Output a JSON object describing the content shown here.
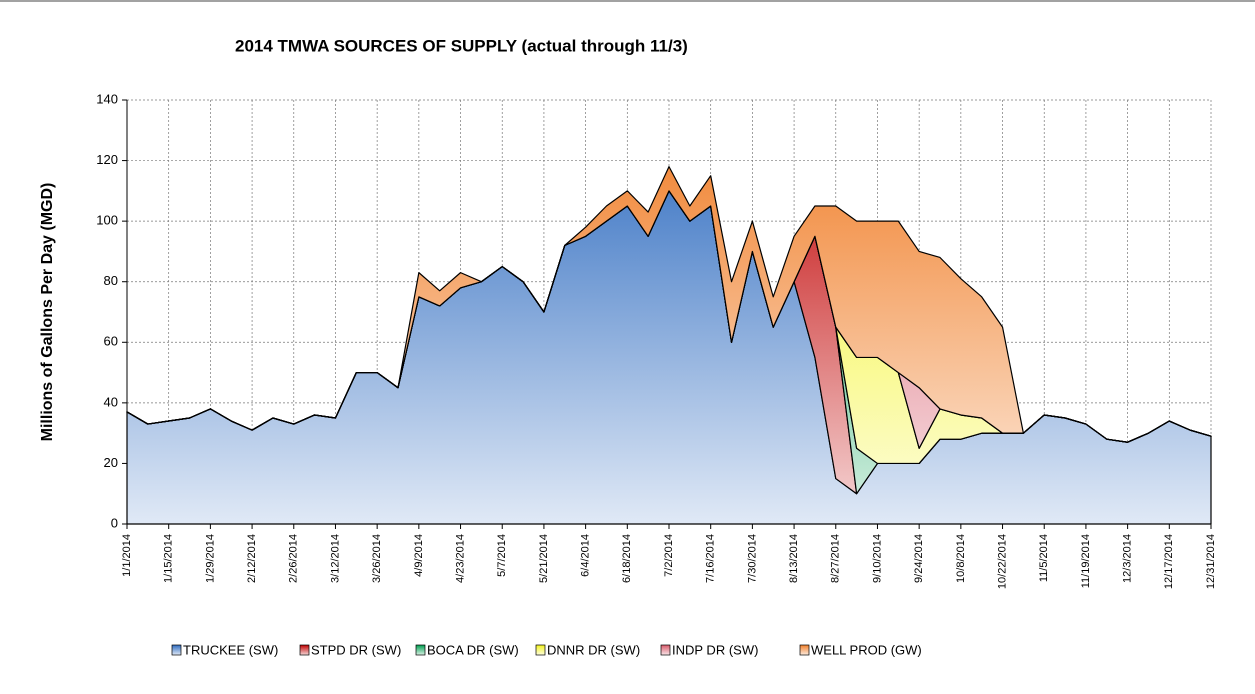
{
  "chart_data": {
    "type": "stacked_area",
    "title": "2014 TMWA SOURCES OF SUPPLY (actual through 11/3)",
    "y_label": "Millions of Gallons Per Day (MGD)",
    "x": [
      "1/1/2014",
      "1/8/2014",
      "1/15/2014",
      "1/22/2014",
      "1/29/2014",
      "2/5/2014",
      "2/12/2014",
      "2/19/2014",
      "2/26/2014",
      "3/5/2014",
      "3/12/2014",
      "3/19/2014",
      "3/26/2014",
      "4/2/2014",
      "4/9/2014",
      "4/16/2014",
      "4/23/2014",
      "4/30/2014",
      "5/7/2014",
      "5/14/2014",
      "5/21/2014",
      "5/28/2014",
      "6/4/2014",
      "6/11/2014",
      "6/18/2014",
      "6/25/2014",
      "7/2/2014",
      "7/9/2014",
      "7/16/2014",
      "7/23/2014",
      "7/30/2014",
      "8/6/2014",
      "8/13/2014",
      "8/20/2014",
      "8/27/2014",
      "9/3/2014",
      "9/10/2014",
      "9/17/2014",
      "9/24/2014",
      "10/1/2014",
      "10/8/2014",
      "10/15/2014",
      "10/22/2014",
      "10/29/2014",
      "11/5/2014",
      "11/12/2014",
      "11/19/2014",
      "11/26/2014",
      "12/3/2014",
      "12/10/2014",
      "12/17/2014",
      "12/24/2014",
      "12/31/2014"
    ],
    "xlim": [
      "1/1/2014",
      "12/31/2014"
    ],
    "xticks": [
      "1/1/2014",
      "1/15/2014",
      "1/29/2014",
      "2/12/2014",
      "2/26/2014",
      "3/12/2014",
      "3/26/2014",
      "4/9/2014",
      "4/23/2014",
      "5/7/2014",
      "5/21/2014",
      "6/4/2014",
      "6/18/2014",
      "7/2/2014",
      "7/16/2014",
      "7/30/2014",
      "8/13/2014",
      "8/27/2014",
      "9/10/2014",
      "9/24/2014",
      "10/8/2014",
      "10/22/2014",
      "11/5/2014",
      "11/19/2014",
      "12/3/2014",
      "12/17/2014",
      "12/31/2014"
    ],
    "ylim": [
      0,
      140
    ],
    "yticks": [
      0,
      20,
      40,
      60,
      80,
      100,
      120,
      140
    ],
    "grid": true,
    "series": [
      {
        "name": "TRUCKEE (SW)",
        "color": "#2f6cc0",
        "values": [
          37,
          33,
          34,
          35,
          38,
          34,
          31,
          35,
          33,
          36,
          35,
          50,
          50,
          45,
          75,
          72,
          78,
          80,
          85,
          80,
          70,
          92,
          95,
          100,
          105,
          95,
          110,
          100,
          105,
          60,
          90,
          65,
          80,
          55,
          15,
          10,
          20,
          20,
          20,
          28,
          28,
          30,
          30,
          30,
          36,
          35,
          33,
          28,
          27,
          30,
          34,
          31,
          29
        ]
      },
      {
        "name": "STPD DR (SW)",
        "color": "#c00000",
        "values": [
          0,
          0,
          0,
          0,
          0,
          0,
          0,
          0,
          0,
          0,
          0,
          0,
          0,
          0,
          0,
          0,
          0,
          0,
          0,
          0,
          0,
          0,
          0,
          0,
          0,
          0,
          0,
          0,
          0,
          0,
          0,
          0,
          0,
          40,
          50,
          0,
          0,
          0,
          0,
          0,
          0,
          0,
          0,
          0,
          0,
          0,
          0,
          0,
          0,
          0,
          0,
          0,
          0
        ]
      },
      {
        "name": "BOCA DR (SW)",
        "color": "#00a050",
        "values": [
          0,
          0,
          0,
          0,
          0,
          0,
          0,
          0,
          0,
          0,
          0,
          0,
          0,
          0,
          0,
          0,
          0,
          0,
          0,
          0,
          0,
          0,
          0,
          0,
          0,
          0,
          0,
          0,
          0,
          0,
          0,
          0,
          0,
          0,
          0,
          15,
          0,
          0,
          0,
          0,
          0,
          0,
          0,
          0,
          0,
          0,
          0,
          0,
          0,
          0,
          0,
          0,
          0
        ]
      },
      {
        "name": "DNNR DR (SW)",
        "color": "#f4f420",
        "values": [
          0,
          0,
          0,
          0,
          0,
          0,
          0,
          0,
          0,
          0,
          0,
          0,
          0,
          0,
          0,
          0,
          0,
          0,
          0,
          0,
          0,
          0,
          0,
          0,
          0,
          0,
          0,
          0,
          0,
          0,
          0,
          0,
          0,
          0,
          0,
          30,
          35,
          30,
          5,
          10,
          8,
          5,
          0,
          0,
          0,
          0,
          0,
          0,
          0,
          0,
          0,
          0,
          0
        ]
      },
      {
        "name": "INDP DR (SW)",
        "color": "#d85a6a",
        "values": [
          0,
          0,
          0,
          0,
          0,
          0,
          0,
          0,
          0,
          0,
          0,
          0,
          0,
          0,
          0,
          0,
          0,
          0,
          0,
          0,
          0,
          0,
          0,
          0,
          0,
          0,
          0,
          0,
          0,
          0,
          0,
          0,
          0,
          0,
          0,
          0,
          0,
          0,
          20,
          0,
          0,
          0,
          0,
          0,
          0,
          0,
          0,
          0,
          0,
          0,
          0,
          0,
          0
        ]
      },
      {
        "name": "WELL PROD (GW)",
        "color": "#f07f2a",
        "values": [
          0,
          0,
          0,
          0,
          0,
          0,
          0,
          0,
          0,
          0,
          0,
          0,
          0,
          0,
          8,
          5,
          5,
          0,
          0,
          0,
          0,
          0,
          3,
          5,
          5,
          8,
          8,
          5,
          10,
          20,
          10,
          10,
          15,
          10,
          40,
          45,
          45,
          50,
          45,
          50,
          45,
          40,
          35,
          0,
          0,
          0,
          0,
          0,
          0,
          0,
          0,
          0,
          0
        ]
      }
    ]
  }
}
